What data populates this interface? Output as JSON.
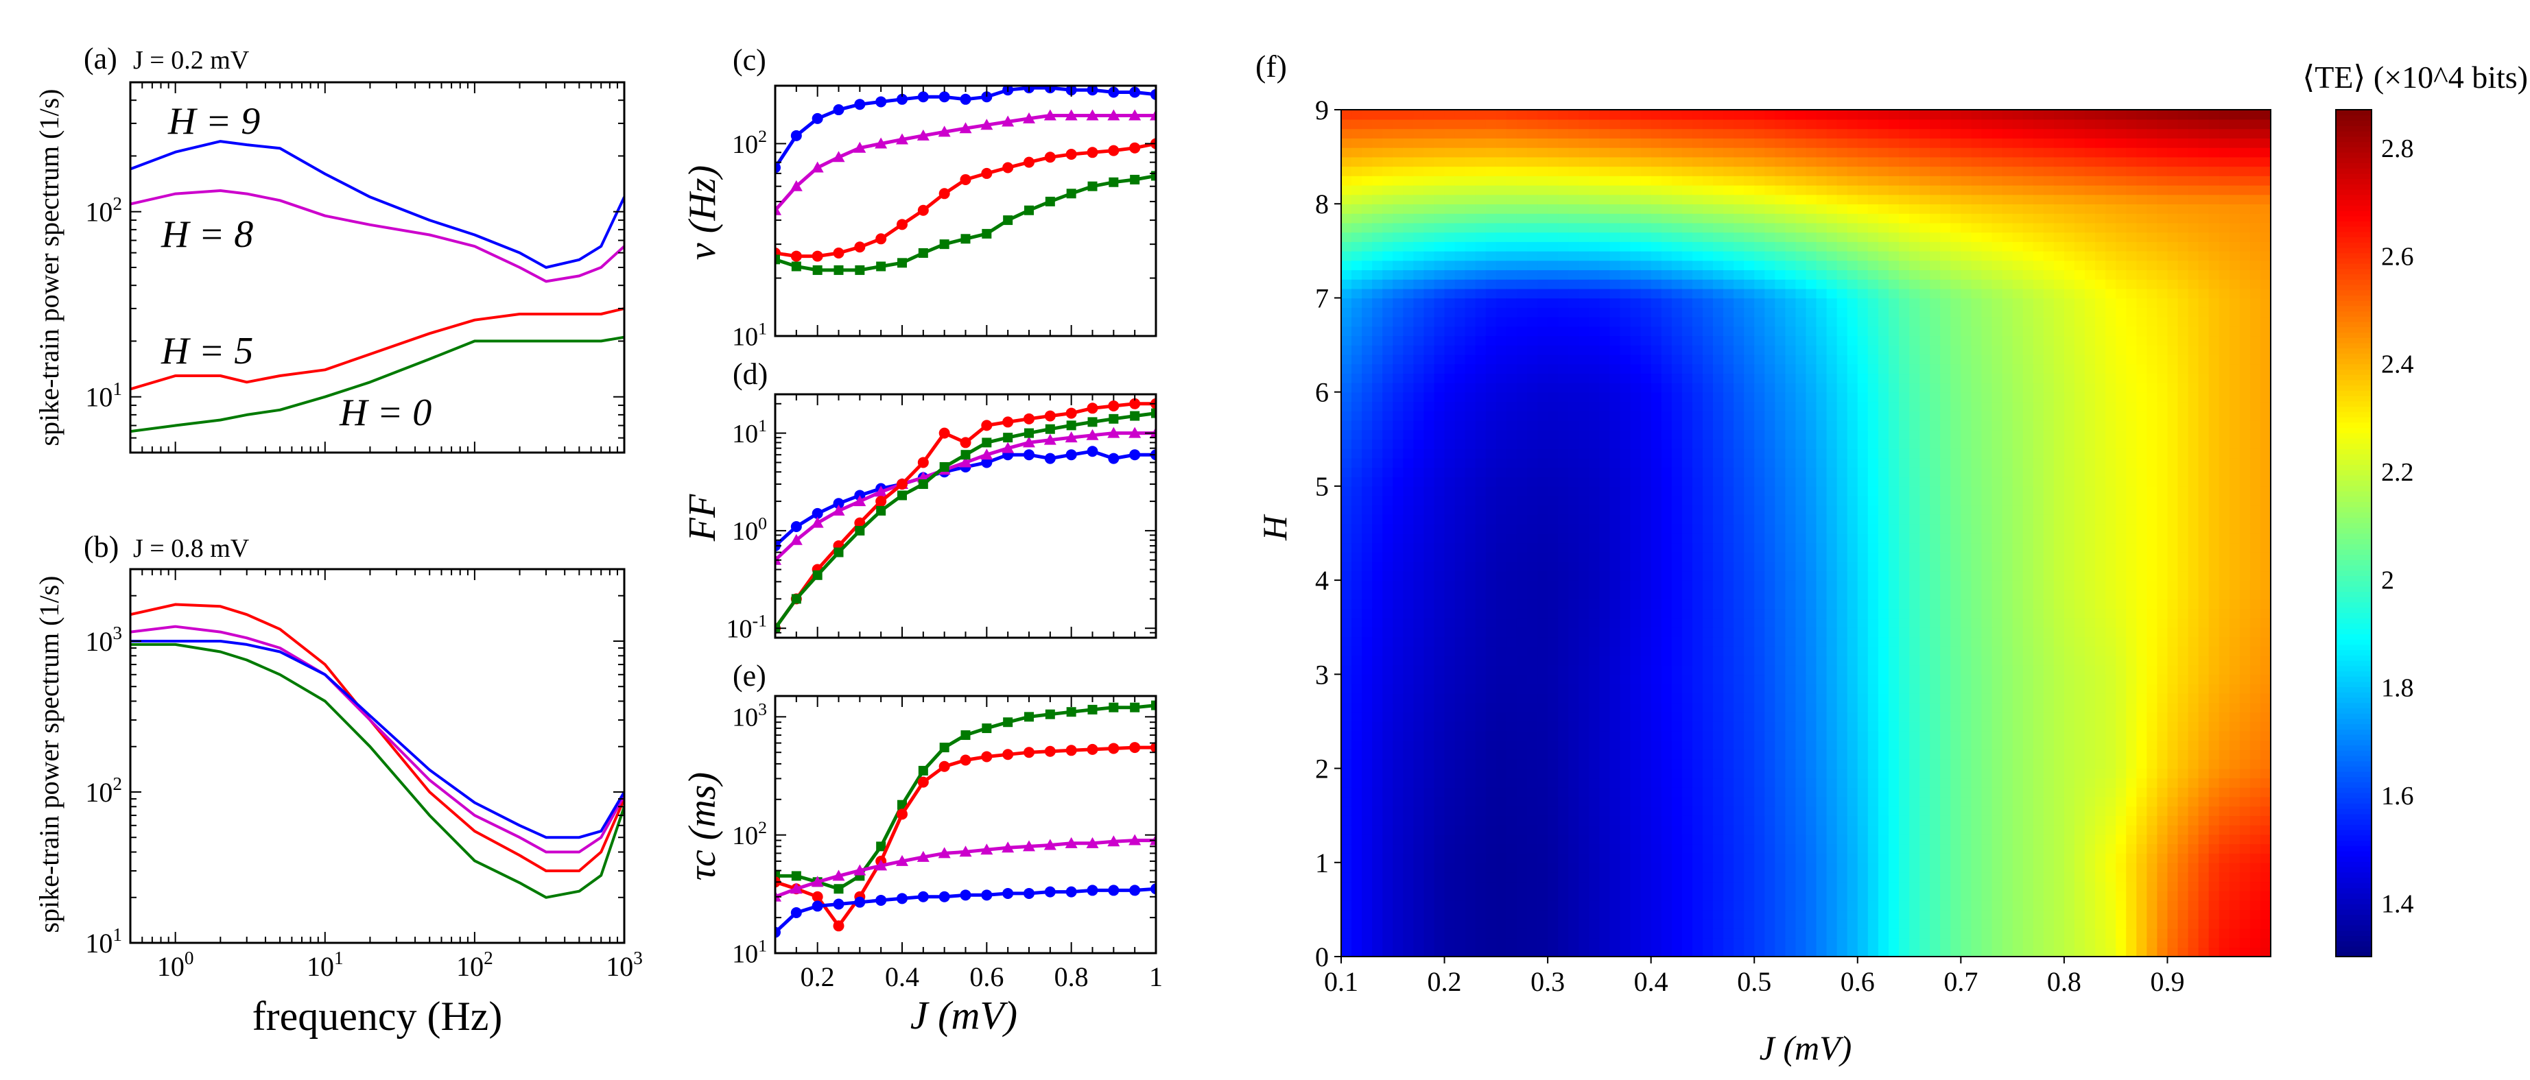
{
  "figure": {
    "panels": {
      "a": {
        "letter": "(a)",
        "note": "J = 0.2 mV",
        "labels": {
          "h9": "H = 9",
          "h8": "H = 8",
          "h5": "H = 5",
          "h0": "H = 0"
        }
      },
      "b": {
        "letter": "(b)",
        "note": "J = 0.8 mV"
      },
      "c": {
        "letter": "(c)"
      },
      "d": {
        "letter": "(d)"
      },
      "e": {
        "letter": "(e)"
      },
      "f": {
        "letter": "(f)"
      }
    },
    "colors": {
      "blue": "#0000ff",
      "magenta": "#cc00cc",
      "red": "#ff0000",
      "green": "#007a00"
    }
  },
  "chart_data": [
    {
      "id": "a",
      "type": "line",
      "ylabel": "spike-train power spectrum (1/s)",
      "xscale": "log",
      "yscale": "log",
      "xlim": [
        0.5,
        1000
      ],
      "ylim": [
        5,
        500
      ],
      "xticks": [],
      "yticks": [
        "10^1",
        "10^2"
      ],
      "x": [
        0.5,
        1,
        2,
        3,
        5,
        10,
        20,
        50,
        100,
        200,
        300,
        500,
        700,
        1000
      ],
      "series": [
        {
          "name": "H = 9",
          "color": "#0000ff",
          "values": [
            170,
            210,
            240,
            230,
            220,
            160,
            120,
            90,
            75,
            60,
            50,
            55,
            65,
            120
          ]
        },
        {
          "name": "H = 8",
          "color": "#cc00cc",
          "values": [
            110,
            125,
            130,
            125,
            115,
            95,
            85,
            75,
            65,
            50,
            42,
            45,
            50,
            65
          ]
        },
        {
          "name": "H = 5",
          "color": "#ff0000",
          "values": [
            11,
            13,
            13,
            12,
            13,
            14,
            17,
            22,
            26,
            28,
            28,
            28,
            28,
            30
          ]
        },
        {
          "name": "H = 0",
          "color": "#007a00",
          "values": [
            6.5,
            7,
            7.5,
            8,
            8.5,
            10,
            12,
            16,
            20,
            20,
            20,
            20,
            20,
            21
          ]
        }
      ]
    },
    {
      "id": "b",
      "type": "line",
      "xlabel": "frequency (Hz)",
      "ylabel": "spike-train power spectrum (1/s)",
      "xscale": "log",
      "yscale": "log",
      "xlim": [
        0.5,
        1000
      ],
      "ylim": [
        10,
        3000
      ],
      "xticks": [
        "10^0",
        "10^1",
        "10^2",
        "10^3"
      ],
      "yticks": [
        "10^1",
        "10^2",
        "10^3"
      ],
      "x": [
        0.5,
        1,
        2,
        3,
        5,
        10,
        20,
        50,
        100,
        200,
        300,
        500,
        700,
        1000
      ],
      "series": [
        {
          "name": "red",
          "color": "#ff0000",
          "values": [
            1500,
            1750,
            1700,
            1500,
            1200,
            700,
            300,
            100,
            55,
            38,
            30,
            30,
            40,
            90
          ]
        },
        {
          "name": "magenta",
          "color": "#cc00cc",
          "values": [
            1150,
            1250,
            1150,
            1050,
            900,
            600,
            300,
            120,
            70,
            50,
            40,
            40,
            50,
            95
          ]
        },
        {
          "name": "blue",
          "color": "#0000ff",
          "values": [
            1000,
            1000,
            1000,
            950,
            850,
            600,
            320,
            140,
            85,
            60,
            50,
            50,
            55,
            100
          ]
        },
        {
          "name": "green",
          "color": "#007a00",
          "values": [
            950,
            950,
            850,
            750,
            600,
            400,
            200,
            70,
            35,
            25,
            20,
            22,
            28,
            80
          ]
        }
      ]
    },
    {
      "id": "c",
      "type": "line",
      "ylabel": "ν (Hz)",
      "xscale": "linear",
      "yscale": "log",
      "xlim": [
        0.1,
        1.0
      ],
      "ylim": [
        10,
        200
      ],
      "yticks": [
        "10^1",
        "10^2"
      ],
      "x": [
        0.1,
        0.15,
        0.2,
        0.25,
        0.3,
        0.35,
        0.4,
        0.45,
        0.5,
        0.55,
        0.6,
        0.65,
        0.7,
        0.75,
        0.8,
        0.85,
        0.9,
        0.95,
        1.0
      ],
      "series": [
        {
          "name": "blue",
          "color": "#0000ff",
          "marker": "circle",
          "values": [
            75,
            110,
            135,
            150,
            160,
            165,
            170,
            175,
            175,
            170,
            175,
            190,
            195,
            195,
            190,
            190,
            185,
            185,
            180
          ]
        },
        {
          "name": "magenta",
          "color": "#cc00cc",
          "marker": "triangle",
          "values": [
            45,
            60,
            75,
            85,
            95,
            100,
            105,
            110,
            115,
            120,
            125,
            130,
            135,
            140,
            140,
            140,
            140,
            140,
            140
          ]
        },
        {
          "name": "red",
          "color": "#ff0000",
          "marker": "circle",
          "values": [
            27,
            26,
            26,
            27,
            29,
            32,
            38,
            45,
            55,
            65,
            70,
            75,
            80,
            85,
            88,
            90,
            92,
            95,
            100
          ]
        },
        {
          "name": "green",
          "color": "#007a00",
          "marker": "square",
          "values": [
            25,
            23,
            22,
            22,
            22,
            23,
            24,
            27,
            30,
            32,
            34,
            40,
            45,
            50,
            55,
            60,
            63,
            65,
            68
          ]
        }
      ]
    },
    {
      "id": "d",
      "type": "line",
      "ylabel": "FF",
      "xscale": "linear",
      "yscale": "log",
      "xlim": [
        0.1,
        1.0
      ],
      "ylim": [
        0.08,
        25
      ],
      "yticks": [
        "10^-1",
        "10^0",
        "10^1"
      ],
      "x": [
        0.1,
        0.15,
        0.2,
        0.25,
        0.3,
        0.35,
        0.4,
        0.45,
        0.5,
        0.55,
        0.6,
        0.65,
        0.7,
        0.75,
        0.8,
        0.85,
        0.9,
        0.95,
        1.0
      ],
      "series": [
        {
          "name": "blue",
          "color": "#0000ff",
          "marker": "circle",
          "values": [
            0.7,
            1.1,
            1.5,
            1.9,
            2.3,
            2.7,
            3.0,
            3.5,
            4.0,
            4.5,
            5.0,
            6.0,
            6.0,
            5.5,
            6.0,
            6.5,
            5.5,
            6.0,
            6.0
          ]
        },
        {
          "name": "magenta",
          "color": "#cc00cc",
          "marker": "triangle",
          "values": [
            0.5,
            0.8,
            1.2,
            1.6,
            2.0,
            2.5,
            3.0,
            3.5,
            4.2,
            5.0,
            6.0,
            7.0,
            8.0,
            8.5,
            9.0,
            9.5,
            10,
            10,
            10
          ]
        },
        {
          "name": "red",
          "color": "#ff0000",
          "marker": "circle",
          "values": [
            0.1,
            0.2,
            0.4,
            0.7,
            1.2,
            2.0,
            3.0,
            5.0,
            10,
            8.0,
            12,
            13,
            14,
            15,
            16,
            18,
            19,
            20,
            20
          ]
        },
        {
          "name": "green",
          "color": "#007a00",
          "marker": "square",
          "values": [
            0.1,
            0.2,
            0.35,
            0.6,
            1.0,
            1.6,
            2.3,
            3.0,
            4.5,
            6.0,
            8.0,
            9.0,
            10,
            11,
            12,
            13,
            14,
            15,
            16
          ]
        }
      ]
    },
    {
      "id": "e",
      "type": "line",
      "xlabel": "J (mV)",
      "ylabel": "τc (ms)",
      "xscale": "linear",
      "yscale": "log",
      "xlim": [
        0.1,
        1.0
      ],
      "ylim": [
        10,
        1500
      ],
      "xticks": [
        "0.2",
        "0.4",
        "0.6",
        "0.8",
        "1"
      ],
      "yticks": [
        "10^1",
        "10^2",
        "10^3"
      ],
      "x": [
        0.1,
        0.15,
        0.2,
        0.25,
        0.3,
        0.35,
        0.4,
        0.45,
        0.5,
        0.55,
        0.6,
        0.65,
        0.7,
        0.75,
        0.8,
        0.85,
        0.9,
        0.95,
        1.0
      ],
      "series": [
        {
          "name": "green",
          "color": "#007a00",
          "marker": "square",
          "values": [
            45,
            45,
            40,
            35,
            45,
            80,
            180,
            350,
            550,
            700,
            800,
            900,
            1000,
            1050,
            1100,
            1150,
            1200,
            1200,
            1250
          ]
        },
        {
          "name": "red",
          "color": "#ff0000",
          "marker": "circle",
          "values": [
            40,
            35,
            30,
            17,
            30,
            60,
            150,
            280,
            380,
            430,
            460,
            480,
            500,
            510,
            520,
            530,
            540,
            550,
            550
          ]
        },
        {
          "name": "magenta",
          "color": "#cc00cc",
          "marker": "triangle",
          "values": [
            30,
            35,
            40,
            45,
            50,
            55,
            60,
            65,
            70,
            72,
            75,
            78,
            80,
            82,
            85,
            85,
            88,
            90,
            90
          ]
        },
        {
          "name": "blue",
          "color": "#0000ff",
          "marker": "circle",
          "values": [
            15,
            22,
            25,
            26,
            27,
            28,
            29,
            30,
            30,
            31,
            31,
            32,
            32,
            33,
            33,
            34,
            34,
            34,
            35
          ]
        }
      ]
    },
    {
      "id": "f",
      "type": "heatmap",
      "xlabel": "J (mV)",
      "ylabel": "H",
      "colorbar_label": "⟨TE⟩ (×10^4 bits)",
      "xlim": [
        0.1,
        1.0
      ],
      "ylim": [
        0,
        9
      ],
      "zlim": [
        1.3,
        2.87
      ],
      "xticks": [
        "0.1",
        "0.2",
        "0.3",
        "0.4",
        "0.5",
        "0.6",
        "0.7",
        "0.8",
        "0.9"
      ],
      "yticks": [
        "0",
        "1",
        "2",
        "3",
        "4",
        "5",
        "6",
        "7",
        "8",
        "9"
      ],
      "colorbar_ticks": [
        "1.4",
        "1.6",
        "1.8",
        "2",
        "2.2",
        "2.4",
        "2.6",
        "2.8"
      ],
      "x": [
        0.1,
        0.15,
        0.2,
        0.25,
        0.3,
        0.35,
        0.4,
        0.45,
        0.5,
        0.55,
        0.6,
        0.65,
        0.7,
        0.75,
        0.8,
        0.85,
        0.9,
        0.95,
        1.0
      ],
      "y": [
        0,
        1,
        2,
        3,
        4,
        5,
        6,
        7,
        8,
        9
      ],
      "z": [
        [
          1.52,
          1.42,
          1.36,
          1.34,
          1.35,
          1.4,
          1.46,
          1.52,
          1.58,
          1.66,
          1.78,
          1.95,
          2.05,
          2.12,
          2.18,
          2.25,
          2.5,
          2.65,
          2.7
        ],
        [
          1.52,
          1.42,
          1.36,
          1.34,
          1.35,
          1.4,
          1.46,
          1.52,
          1.58,
          1.66,
          1.78,
          1.95,
          2.05,
          2.12,
          2.18,
          2.28,
          2.45,
          2.6,
          2.65
        ],
        [
          1.52,
          1.43,
          1.38,
          1.35,
          1.36,
          1.41,
          1.47,
          1.53,
          1.59,
          1.68,
          1.8,
          1.95,
          2.05,
          2.12,
          2.18,
          2.22,
          2.35,
          2.45,
          2.5
        ],
        [
          1.53,
          1.45,
          1.4,
          1.37,
          1.37,
          1.41,
          1.48,
          1.54,
          1.6,
          1.69,
          1.82,
          1.96,
          2.05,
          2.12,
          2.18,
          2.22,
          2.32,
          2.4,
          2.45
        ],
        [
          1.55,
          1.47,
          1.42,
          1.38,
          1.37,
          1.4,
          1.47,
          1.54,
          1.61,
          1.7,
          1.83,
          1.97,
          2.06,
          2.13,
          2.2,
          2.25,
          2.3,
          2.38,
          2.42
        ],
        [
          1.58,
          1.5,
          1.44,
          1.4,
          1.39,
          1.41,
          1.47,
          1.55,
          1.63,
          1.72,
          1.85,
          1.98,
          2.07,
          2.13,
          2.2,
          2.25,
          2.3,
          2.38,
          2.42
        ],
        [
          1.66,
          1.56,
          1.49,
          1.45,
          1.43,
          1.44,
          1.49,
          1.57,
          1.66,
          1.75,
          1.87,
          2.0,
          2.08,
          2.14,
          2.2,
          2.26,
          2.3,
          2.38,
          2.42
        ],
        [
          1.76,
          1.66,
          1.58,
          1.53,
          1.52,
          1.53,
          1.57,
          1.64,
          1.72,
          1.81,
          1.92,
          2.03,
          2.1,
          2.16,
          2.22,
          2.28,
          2.32,
          2.38,
          2.42
        ],
        [
          2.2,
          2.16,
          2.14,
          2.13,
          2.13,
          2.14,
          2.16,
          2.19,
          2.22,
          2.26,
          2.3,
          2.33,
          2.36,
          2.38,
          2.4,
          2.42,
          2.44,
          2.45,
          2.46
        ],
        [
          2.6,
          2.6,
          2.6,
          2.6,
          2.62,
          2.64,
          2.66,
          2.67,
          2.68,
          2.7,
          2.72,
          2.74,
          2.76,
          2.78,
          2.8,
          2.82,
          2.84,
          2.86,
          2.87
        ]
      ]
    }
  ]
}
